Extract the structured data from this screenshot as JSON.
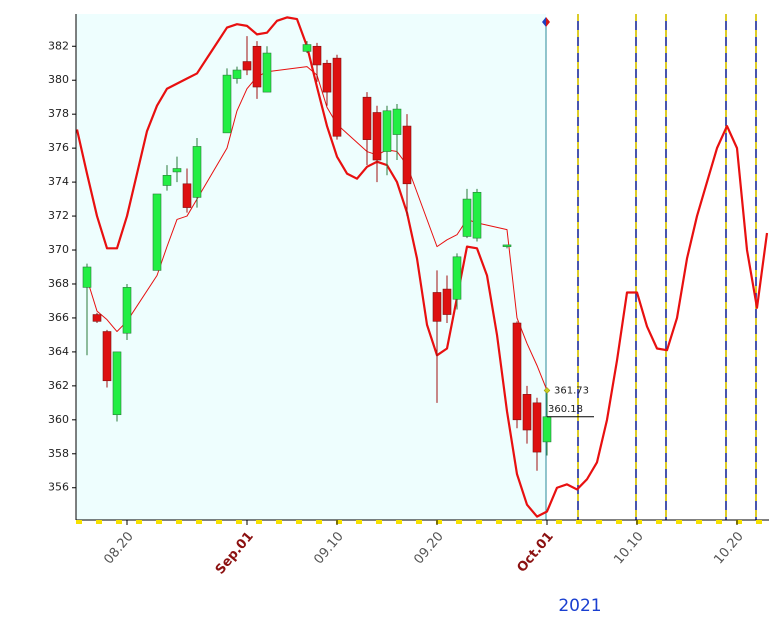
{
  "chart_data": {
    "type": "candlestick",
    "x": [
      "08.15",
      "08.16",
      "08.17",
      "08.18",
      "08.19",
      "08.20",
      "08.21",
      "08.22",
      "08.23",
      "08.24",
      "08.25",
      "08.26",
      "08.27",
      "08.28",
      "08.29",
      "08.30",
      "08.31",
      "09.01",
      "09.02",
      "09.03",
      "09.04",
      "09.05",
      "09.06",
      "09.07",
      "09.08",
      "09.09",
      "09.10",
      "09.11",
      "09.12",
      "09.13",
      "09.14",
      "09.15",
      "09.16",
      "09.17",
      "09.18",
      "09.19",
      "09.20",
      "09.21",
      "09.22",
      "09.23",
      "09.24",
      "09.25",
      "09.26",
      "09.27",
      "09.28",
      "09.29",
      "09.30",
      "10.01",
      "10.02",
      "10.03",
      "10.04",
      "10.05",
      "10.06",
      "10.07",
      "10.08",
      "10.09",
      "10.10",
      "10.11",
      "10.12",
      "10.13",
      "10.14",
      "10.15",
      "10.16",
      "10.17",
      "10.18",
      "10.19",
      "10.20",
      "10.21",
      "10.22",
      "10.23"
    ],
    "xticks": [
      "08.20",
      {
        "value": "09.01",
        "label": "Sep.01"
      },
      "09.10",
      "09.20",
      {
        "value": "10.01",
        "label": "Oct.01"
      },
      "10.10",
      "10.20"
    ],
    "x_label": "2021",
    "ylim": [
      354.1,
      383.9
    ],
    "yticks": [
      356,
      358,
      360,
      362,
      364,
      366,
      368,
      370,
      372,
      374,
      376,
      378,
      380,
      382
    ],
    "up_color": "#22ee44",
    "down_color": "#dd1111",
    "series": [
      {
        "type": "line",
        "color": "#e81010",
        "values": [
          377.1,
          374.5,
          372,
          370.1,
          370.1,
          372,
          374.5,
          377,
          378.5,
          379.5,
          379.8,
          380.1,
          380.4,
          381.3,
          382.2,
          383.1,
          383.3,
          383.2,
          382.7,
          382.8,
          383.5,
          383.7,
          383.6,
          382,
          379.6,
          377.3,
          375.5,
          374.5,
          374.2,
          374.9,
          375.2,
          375,
          374,
          372.2,
          369.5,
          365.6,
          363.8,
          364.2,
          367.2,
          370.2,
          370.1,
          368.5,
          365,
          360.5,
          356.8,
          355,
          354.3,
          354.6,
          356,
          356.2,
          355.9,
          356.5,
          357.5,
          360,
          363.5,
          367.5,
          367.5,
          365.5,
          364.2,
          364.1,
          366,
          369.5,
          372,
          374,
          376,
          377.3,
          376,
          370,
          366.6,
          371
        ]
      },
      {
        "type": "line",
        "color": "#e81010",
        "x": [
          "08.16",
          "08.17",
          "08.18",
          "08.19",
          "08.20",
          "08.23",
          "08.24",
          "08.25",
          "08.26",
          "08.27",
          "08.30",
          "08.31",
          "09.01",
          "09.02",
          "09.03",
          "09.07",
          "09.08",
          "09.09",
          "09.10",
          "09.13",
          "09.14",
          "09.15",
          "09.16",
          "09.17",
          "09.20",
          "09.21",
          "09.22",
          "09.23",
          "09.24",
          "09.27",
          "09.28",
          "09.29",
          "09.30",
          "10.01"
        ],
        "values": [
          368.3,
          366.4,
          365.9,
          365.2,
          365.8,
          368.5,
          370.2,
          371.8,
          372,
          373,
          376,
          378.2,
          379.5,
          380.2,
          380.5,
          380.8,
          380.3,
          378.4,
          377.4,
          375.8,
          375.6,
          375.9,
          375.8,
          375,
          370.2,
          370.6,
          370.9,
          371.8,
          371.6,
          371.2,
          366,
          364.5,
          363.2,
          361.73
        ]
      },
      {
        "type": "candlestick",
        "x": [
          "08.16",
          "08.17",
          "08.18",
          "08.19",
          "08.20",
          "08.23",
          "08.24",
          "08.25",
          "08.26",
          "08.27",
          "08.30",
          "08.31",
          "09.01",
          "09.02",
          "09.03",
          "09.07",
          "09.08",
          "09.09",
          "09.10",
          "09.13",
          "09.14",
          "09.15",
          "09.16",
          "09.17",
          "09.20",
          "09.21",
          "09.22",
          "09.23",
          "09.24",
          "09.27",
          "09.28",
          "09.29",
          "09.30",
          "10.01"
        ],
        "open": [
          367.8,
          366.2,
          365.2,
          360.3,
          365.1,
          368.8,
          373.8,
          374.6,
          373.9,
          373.1,
          376.9,
          380.1,
          381.1,
          382,
          379.3,
          381.7,
          382,
          381,
          381.3,
          379,
          378.1,
          375.8,
          376.8,
          377.3,
          367.5,
          367.7,
          367.1,
          370.8,
          370.7,
          370.2,
          365.7,
          361.5,
          361,
          358.7
        ],
        "high": [
          369.2,
          366.3,
          365.3,
          364,
          368,
          373.3,
          375,
          375.5,
          374.8,
          376.6,
          380.7,
          380.8,
          382.6,
          382.3,
          382,
          382.3,
          382.2,
          381.2,
          381.5,
          379.3,
          378.5,
          378.5,
          378.6,
          378,
          368.8,
          368.5,
          369.8,
          373.6,
          373.6,
          370.3,
          365.8,
          362,
          361.3,
          361.8
        ],
        "low": [
          363.8,
          365.7,
          361.9,
          359.9,
          364.7,
          368.8,
          373.5,
          374,
          372.2,
          372.5,
          376.9,
          379.8,
          380.3,
          378.9,
          379.3,
          381.6,
          379.9,
          378.5,
          376.5,
          375,
          374,
          374.4,
          375.3,
          372,
          361,
          365.7,
          366.5,
          370.7,
          370.5,
          370.1,
          359.5,
          358.6,
          357,
          357.9
        ],
        "close": [
          369,
          365.8,
          362.3,
          364,
          367.8,
          373.3,
          374.4,
          374.8,
          372.5,
          376.1,
          380.3,
          380.6,
          380.6,
          379.6,
          381.6,
          382.1,
          380.9,
          379.3,
          376.7,
          376.5,
          375.3,
          378.2,
          378.3,
          373.9,
          365.8,
          366.2,
          369.6,
          373,
          373.4,
          370.3,
          360,
          359.4,
          358.1,
          360.18
        ]
      }
    ]
  }
}
